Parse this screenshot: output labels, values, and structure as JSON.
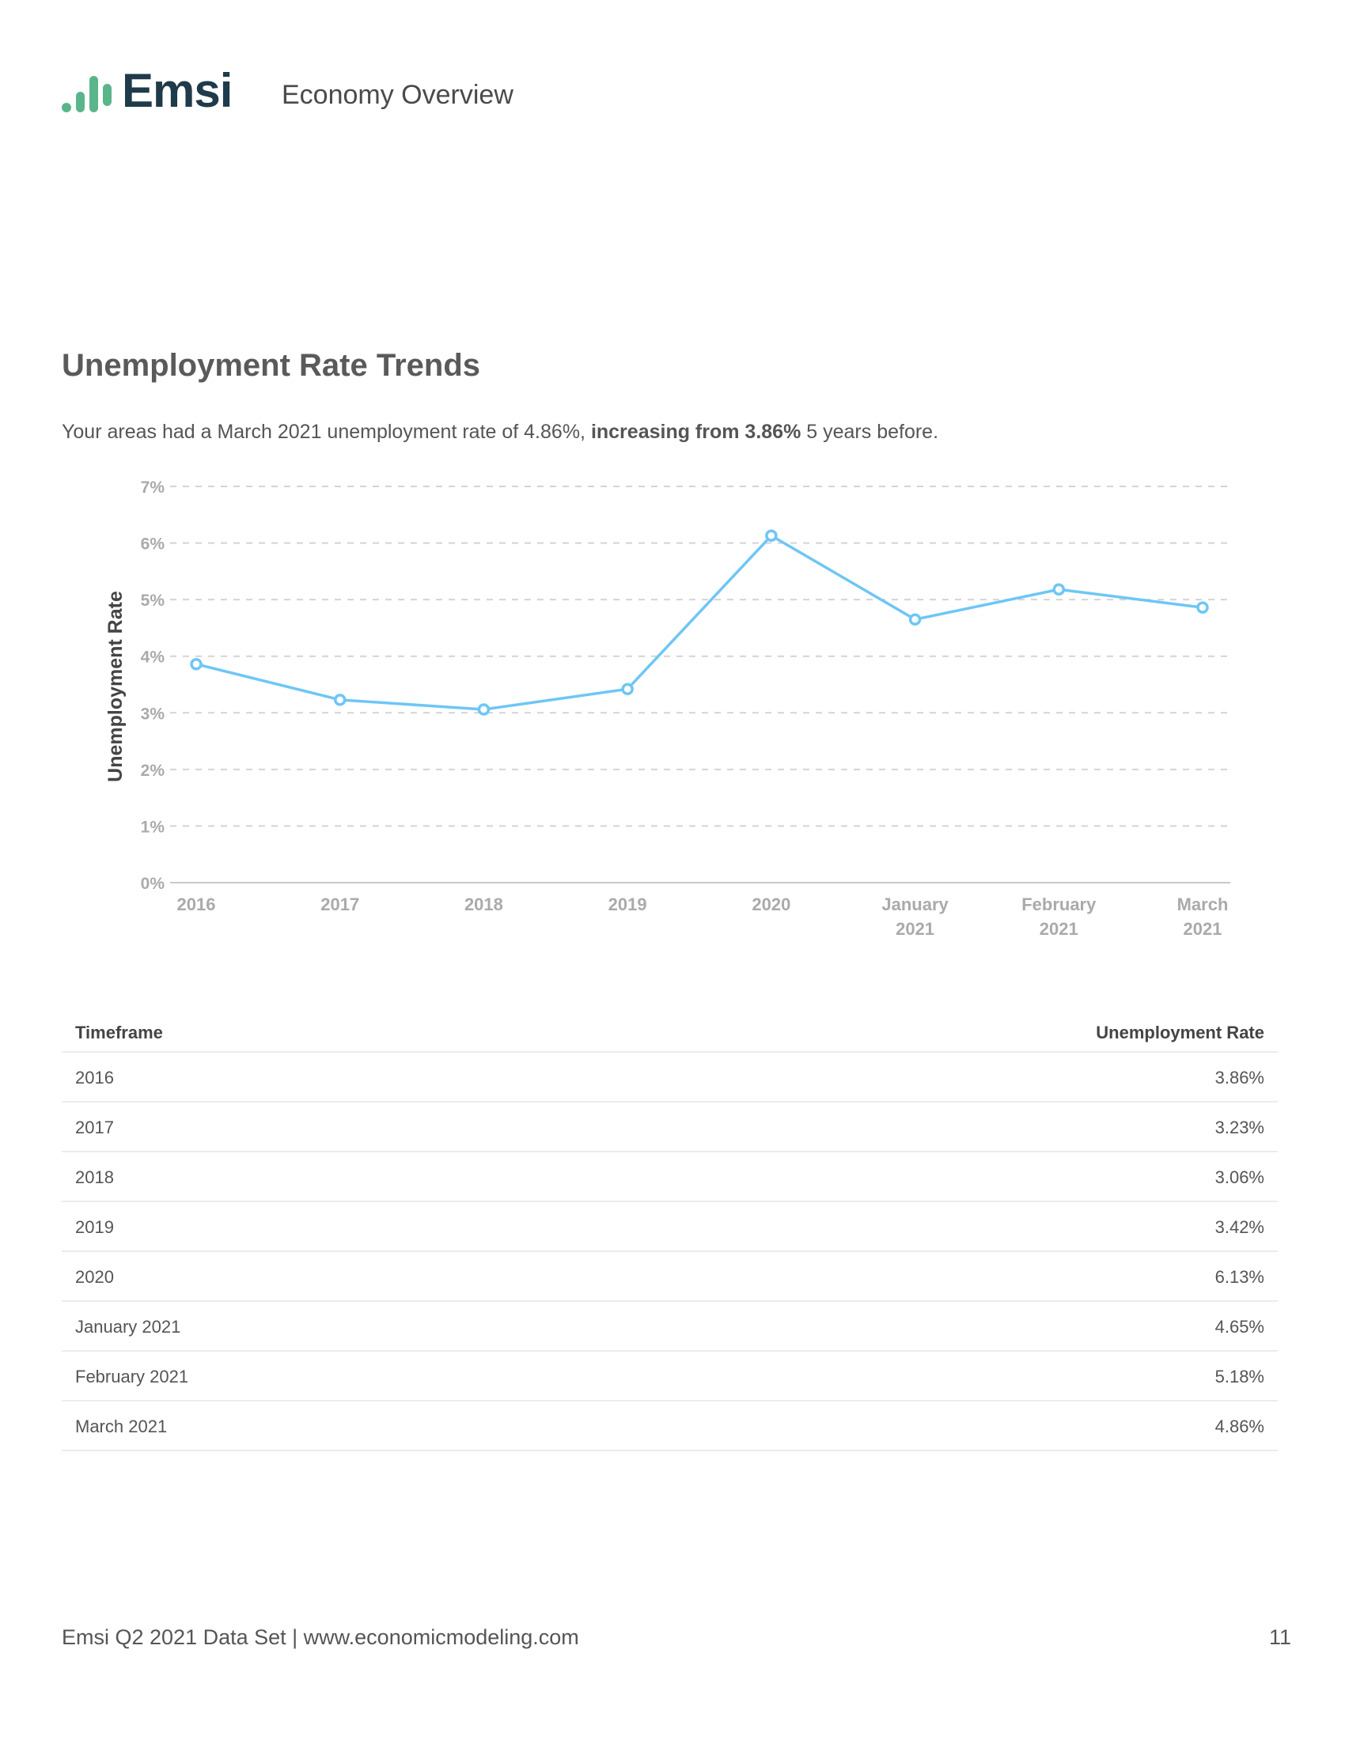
{
  "header": {
    "logo_text": "Emsi",
    "title": "Economy Overview",
    "brand_color": "#5bb58a"
  },
  "section": {
    "title": "Unemployment Rate Trends",
    "summary_prefix": "Your areas had a March 2021 unemployment rate of 4.86%, ",
    "summary_bold": "increasing from 3.86%",
    "summary_suffix": " 5 years before."
  },
  "chart_data": {
    "type": "line",
    "categories": [
      "2016",
      "2017",
      "2018",
      "2019",
      "2020",
      "January 2021",
      "February 2021",
      "March 2021"
    ],
    "category_lines": [
      [
        "2016"
      ],
      [
        "2017"
      ],
      [
        "2018"
      ],
      [
        "2019"
      ],
      [
        "2020"
      ],
      [
        "January",
        "2021"
      ],
      [
        "February",
        "2021"
      ],
      [
        "March",
        "2021"
      ]
    ],
    "values": [
      3.86,
      3.23,
      3.06,
      3.42,
      6.13,
      4.65,
      5.18,
      4.86
    ],
    "ylabel": "Unemployment Rate",
    "ylim": [
      0,
      7
    ],
    "yticks": [
      "0%",
      "1%",
      "2%",
      "3%",
      "4%",
      "5%",
      "6%",
      "7%"
    ],
    "grid": true,
    "line_color": "#6ec6f5"
  },
  "table": {
    "headers": [
      "Timeframe",
      "Unemployment Rate"
    ],
    "rows": [
      [
        "2016",
        "3.86%"
      ],
      [
        "2017",
        "3.23%"
      ],
      [
        "2018",
        "3.06%"
      ],
      [
        "2019",
        "3.42%"
      ],
      [
        "2020",
        "6.13%"
      ],
      [
        "January 2021",
        "4.65%"
      ],
      [
        "February 2021",
        "5.18%"
      ],
      [
        "March 2021",
        "4.86%"
      ]
    ]
  },
  "footer": {
    "text": "Emsi Q2 2021 Data Set | www.economicmodeling.com",
    "page_number": "11"
  }
}
